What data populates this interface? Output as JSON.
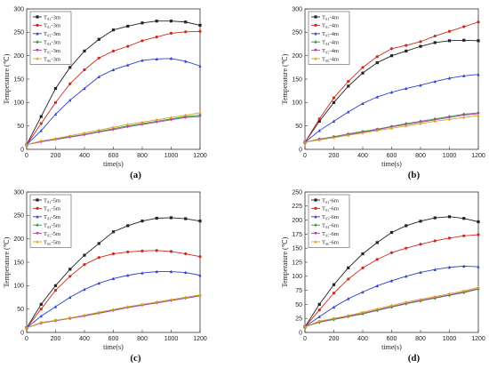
{
  "chart_data": [
    {
      "panel": "(a)",
      "type": "line",
      "xlabel": "time(s)",
      "ylabel": "Temperature  (℃)",
      "xlim": [
        0,
        1200
      ],
      "ylim": [
        0,
        300
      ],
      "xticks": [
        0,
        200,
        400,
        600,
        800,
        1000,
        1200
      ],
      "yticks": [
        0,
        50,
        100,
        150,
        200,
        250,
        300
      ],
      "legend_position": "top-left",
      "x": [
        0,
        100,
        200,
        300,
        400,
        500,
        600,
        700,
        800,
        900,
        1000,
        1100,
        1200
      ],
      "series": [
        {
          "name": "T₀₁-3m",
          "color": "#222222",
          "values": [
            10,
            70,
            130,
            175,
            210,
            235,
            255,
            263,
            270,
            274,
            274,
            272,
            265
          ]
        },
        {
          "name": "T₀₂-3m",
          "color": "#cc2a1f",
          "values": [
            10,
            55,
            100,
            140,
            170,
            195,
            210,
            220,
            232,
            240,
            248,
            251,
            252
          ]
        },
        {
          "name": "T₀₃-3m",
          "color": "#2a3fcc",
          "values": [
            10,
            40,
            75,
            105,
            130,
            155,
            170,
            180,
            190,
            193,
            194,
            188,
            178
          ]
        },
        {
          "name": "T₀₄-3m",
          "color": "#2a9a3a",
          "values": [
            10,
            17,
            22,
            27,
            32,
            38,
            44,
            50,
            55,
            60,
            65,
            70,
            73
          ]
        },
        {
          "name": "T₀₅-3m",
          "color": "#b03fb0",
          "values": [
            10,
            16,
            21,
            26,
            31,
            37,
            42,
            48,
            53,
            58,
            63,
            68,
            70
          ]
        },
        {
          "name": "T₀₆-3m",
          "color": "#d8a21a",
          "values": [
            10,
            18,
            23,
            29,
            35,
            41,
            47,
            53,
            58,
            63,
            68,
            73,
            78
          ]
        }
      ]
    },
    {
      "panel": "(b)",
      "type": "line",
      "xlabel": "time(s)",
      "ylabel": "Temperature  (℃)",
      "xlim": [
        0,
        1200
      ],
      "ylim": [
        0,
        300
      ],
      "xticks": [
        0,
        200,
        400,
        600,
        800,
        1000,
        1200
      ],
      "yticks": [
        0,
        50,
        100,
        150,
        200,
        250,
        300
      ],
      "legend_position": "top-left",
      "x": [
        0,
        100,
        200,
        300,
        400,
        500,
        600,
        700,
        800,
        900,
        1000,
        1100,
        1200
      ],
      "series": [
        {
          "name": "T₀₁-4m",
          "color": "#222222",
          "values": [
            15,
            60,
            100,
            135,
            163,
            185,
            200,
            210,
            220,
            228,
            232,
            233,
            232
          ]
        },
        {
          "name": "T₀₂-4m",
          "color": "#cc2a1f",
          "values": [
            15,
            65,
            110,
            145,
            175,
            198,
            215,
            222,
            230,
            242,
            252,
            262,
            272
          ]
        },
        {
          "name": "T₀₃-4m",
          "color": "#2a3fcc",
          "values": [
            15,
            40,
            60,
            80,
            98,
            112,
            122,
            130,
            137,
            145,
            152,
            157,
            160
          ]
        },
        {
          "name": "T₀₄-4m",
          "color": "#2a9a3a",
          "values": [
            15,
            22,
            27,
            33,
            38,
            43,
            49,
            55,
            60,
            65,
            70,
            75,
            78
          ]
        },
        {
          "name": "T₀₅-4m",
          "color": "#b03fb0",
          "values": [
            15,
            21,
            26,
            31,
            37,
            42,
            48,
            53,
            58,
            63,
            68,
            73,
            76
          ]
        },
        {
          "name": "T₀₆-4m",
          "color": "#d8a21a",
          "values": [
            15,
            20,
            25,
            30,
            35,
            40,
            45,
            50,
            55,
            60,
            64,
            68,
            72
          ]
        }
      ]
    },
    {
      "panel": "(c)",
      "type": "line",
      "xlabel": "time(s)",
      "ylabel": "Temperature  (℃)",
      "xlim": [
        0,
        1200
      ],
      "ylim": [
        0,
        300
      ],
      "xticks": [
        0,
        200,
        400,
        600,
        800,
        1000,
        1200
      ],
      "yticks": [
        0,
        50,
        100,
        150,
        200,
        250,
        300
      ],
      "legend_position": "top-left",
      "x": [
        0,
        100,
        200,
        300,
        400,
        500,
        600,
        700,
        800,
        900,
        1000,
        1100,
        1200
      ],
      "series": [
        {
          "name": "T₀₁-5m",
          "color": "#222222",
          "values": [
            10,
            60,
            100,
            135,
            165,
            190,
            215,
            228,
            238,
            244,
            245,
            243,
            238
          ]
        },
        {
          "name": "T₀₂-5m",
          "color": "#cc2a1f",
          "values": [
            10,
            50,
            90,
            120,
            145,
            160,
            168,
            172,
            174,
            175,
            173,
            168,
            162
          ]
        },
        {
          "name": "T₀₃-5m",
          "color": "#2a3fcc",
          "values": [
            10,
            35,
            55,
            75,
            92,
            105,
            115,
            122,
            127,
            130,
            130,
            128,
            122
          ]
        },
        {
          "name": "T₀₄-5m",
          "color": "#2a9a3a",
          "values": [
            10,
            20,
            25,
            30,
            36,
            42,
            48,
            54,
            59,
            64,
            69,
            74,
            79
          ]
        },
        {
          "name": "T₀₅-5m",
          "color": "#b03fb0",
          "values": [
            10,
            20,
            25,
            30,
            35,
            41,
            47,
            53,
            58,
            63,
            68,
            73,
            78
          ]
        },
        {
          "name": "T₀₆-5m",
          "color": "#d8a21a",
          "values": [
            10,
            21,
            26,
            31,
            37,
            43,
            49,
            55,
            60,
            65,
            70,
            75,
            80
          ]
        }
      ]
    },
    {
      "panel": "(d)",
      "type": "line",
      "xlabel": "time(s)",
      "ylabel": "Temperature  (℃)",
      "xlim": [
        0,
        1200
      ],
      "ylim": [
        0,
        250
      ],
      "xticks": [
        0,
        200,
        400,
        600,
        800,
        1000,
        1200
      ],
      "yticks": [
        0,
        25,
        50,
        75,
        100,
        125,
        150,
        175,
        200,
        225,
        250
      ],
      "legend_position": "top-left",
      "x": [
        0,
        100,
        200,
        300,
        400,
        500,
        600,
        700,
        800,
        900,
        1000,
        1100,
        1200
      ],
      "series": [
        {
          "name": "T₀₁-6m",
          "color": "#222222",
          "values": [
            10,
            50,
            85,
            115,
            140,
            160,
            178,
            190,
            198,
            204,
            206,
            203,
            197
          ]
        },
        {
          "name": "T₀₂-6m",
          "color": "#cc2a1f",
          "values": [
            10,
            40,
            70,
            95,
            115,
            130,
            142,
            150,
            157,
            163,
            168,
            172,
            174
          ]
        },
        {
          "name": "T₀₃-6m",
          "color": "#2a3fcc",
          "values": [
            10,
            28,
            45,
            60,
            72,
            83,
            92,
            100,
            107,
            112,
            116,
            118,
            117
          ]
        },
        {
          "name": "T₀₄-6m",
          "color": "#2a9a3a",
          "values": [
            10,
            18,
            23,
            28,
            33,
            39,
            45,
            51,
            56,
            61,
            66,
            71,
            77
          ]
        },
        {
          "name": "T₀₅-6m",
          "color": "#b03fb0",
          "values": [
            10,
            19,
            24,
            29,
            34,
            40,
            46,
            52,
            57,
            62,
            67,
            72,
            78
          ]
        },
        {
          "name": "T₀₆-6m",
          "color": "#d8a21a",
          "values": [
            10,
            20,
            25,
            30,
            36,
            42,
            48,
            54,
            59,
            64,
            69,
            74,
            80
          ]
        }
      ]
    }
  ]
}
